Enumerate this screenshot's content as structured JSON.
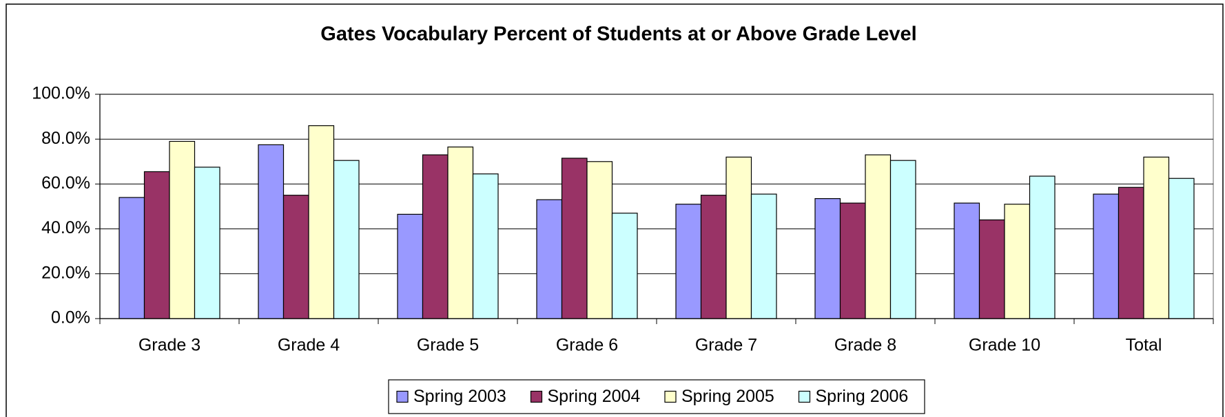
{
  "chart_data": {
    "type": "bar",
    "title": "Gates Vocabulary   Percent of Students at or Above Grade Level",
    "categories": [
      "Grade 3",
      "Grade 4",
      "Grade 5",
      "Grade 6",
      "Grade 7",
      "Grade 8",
      "Grade 10",
      "Total"
    ],
    "series": [
      {
        "name": "Spring 2003",
        "color": "#9999ff",
        "values": [
          54,
          77.5,
          46.5,
          53,
          51,
          53.5,
          51.5,
          55.5
        ]
      },
      {
        "name": "Spring 2004",
        "color": "#993366",
        "values": [
          65.5,
          55,
          73,
          71.5,
          55,
          51.5,
          44,
          58.5
        ]
      },
      {
        "name": "Spring 2005",
        "color": "#ffffcc",
        "values": [
          79,
          86,
          76.5,
          70,
          72,
          73,
          51,
          72
        ]
      },
      {
        "name": "Spring 2006",
        "color": "#ccffff",
        "values": [
          67.5,
          70.5,
          64.5,
          47,
          55.5,
          70.5,
          63.5,
          62.5
        ]
      }
    ],
    "ylim": [
      0,
      100
    ],
    "yticks": [
      {
        "value": 0,
        "label": "0.0%"
      },
      {
        "value": 20,
        "label": "20.0%"
      },
      {
        "value": 40,
        "label": "40.0%"
      },
      {
        "value": 60,
        "label": "60.0%"
      },
      {
        "value": 80,
        "label": "80.0%"
      },
      {
        "value": 100,
        "label": "100.0%"
      }
    ],
    "grid": true,
    "legend": "bottom"
  }
}
